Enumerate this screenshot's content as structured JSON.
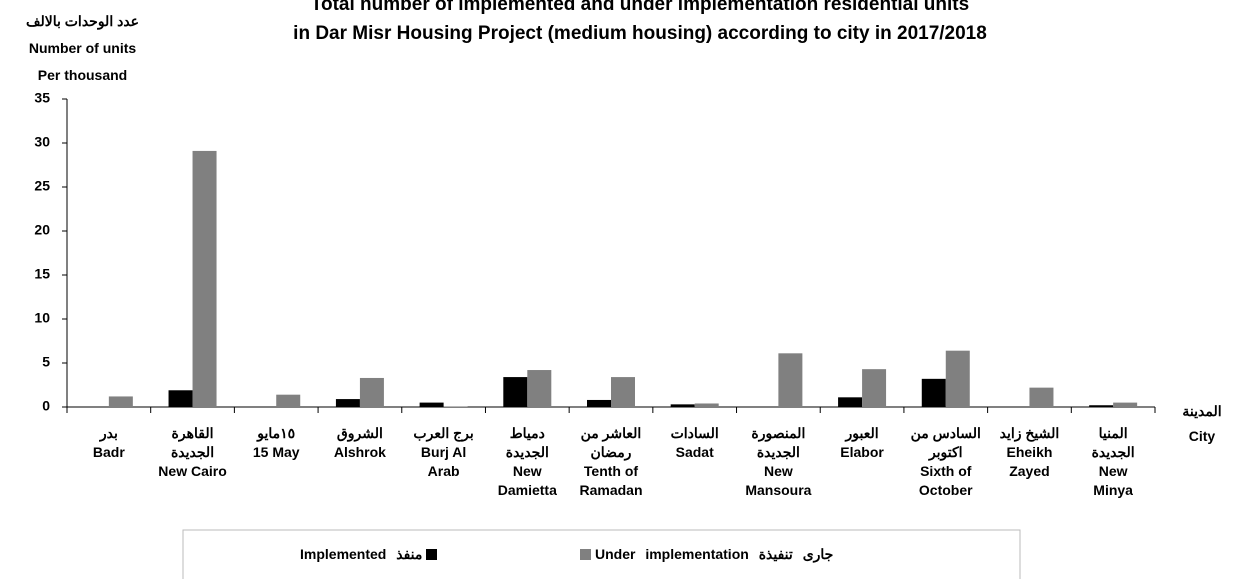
{
  "chart_data": {
    "type": "bar",
    "title": "Total number of implemented and under implementation residential units\nin Dar Misr Housing Project (medium housing) according to city in 2017/2018",
    "y_axis_label": "عدد الوحدات بالالف\nNumber of units\nPer thousand",
    "x_axis_label": "المدينة\nCity",
    "categories": [
      "بدر\nBadr",
      "القاهرة\nالجديدة\nNew Cairo",
      "١٥مايو\n15 May",
      "الشروق\nAlshrok",
      "برج العرب\nBurj Al\nArab",
      "دمياط\nالجديدة\nNew\nDamietta",
      "العاشر من\nرمضان\nTenth of\nRamadan",
      "السادات\nSadat",
      "المنصورة\nالجديدة\nNew\nMansoura",
      "العبور\nElabor",
      "السادس من\nاكتوبر\nSixth of\nOctober",
      "الشيخ زايد\nEheikh\nZayed",
      "المنيا\nالجديدة\nNew\nMinya"
    ],
    "series": [
      {
        "name": "Implemented منفذ",
        "color": "#000000",
        "values": [
          0,
          1.9,
          0,
          0.9,
          0.5,
          3.4,
          0.8,
          0.3,
          0,
          1.1,
          3.2,
          0.05,
          0.2
        ]
      },
      {
        "name": "Under implementation جارى تنفيذة",
        "color": "#808080",
        "values": [
          1.2,
          29.1,
          1.4,
          3.3,
          0.05,
          4.2,
          3.4,
          0.4,
          6.1,
          4.3,
          6.4,
          2.2,
          0.5
        ]
      }
    ],
    "ylim": [
      0,
      35
    ],
    "yticks": [
      0,
      5,
      10,
      15,
      20,
      25,
      30,
      35
    ],
    "grid": false,
    "legend_position": "bottom"
  }
}
